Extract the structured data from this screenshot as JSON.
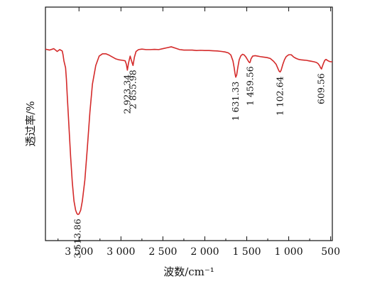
{
  "chart_data": {
    "type": "line",
    "xlabel": "波数/cm⁻¹",
    "ylabel": "透过率/%",
    "x_reversed": true,
    "xlim": [
      3900,
      480
    ],
    "ylim": [
      0,
      100
    ],
    "grid": false,
    "y_tick_labels_shown": false,
    "x_ticks": [
      {
        "value": 3500,
        "label": "3 500"
      },
      {
        "value": 3000,
        "label": "3 000"
      },
      {
        "value": 2500,
        "label": "2 500"
      },
      {
        "value": 2000,
        "label": "2 000"
      },
      {
        "value": 1500,
        "label": "1 500"
      },
      {
        "value": 1000,
        "label": "1 000"
      },
      {
        "value": 500,
        "label": "500"
      }
    ],
    "annotations": [
      {
        "text": "3 513.86",
        "x": 3513.86
      },
      {
        "text": "2 923.34",
        "x": 2923.34
      },
      {
        "text": "2 855.98",
        "x": 2855.98
      },
      {
        "text": "1 631.33",
        "x": 1631.33
      },
      {
        "text": "1 459.56",
        "x": 1459.56
      },
      {
        "text": "1 102.64",
        "x": 1102.64
      },
      {
        "text": "609.56",
        "x": 609.56
      }
    ],
    "series": [
      {
        "color": "#d42a2a",
        "x": [
          3900,
          3850,
          3800,
          3760,
          3730,
          3700,
          3690,
          3680,
          3660,
          3650,
          3640,
          3620,
          3600,
          3580,
          3560,
          3540,
          3525,
          3513.86,
          3500,
          3480,
          3460,
          3430,
          3400,
          3370,
          3340,
          3300,
          3260,
          3220,
          3180,
          3140,
          3100,
          3060,
          3020,
          2980,
          2950,
          2935,
          2923.34,
          2910,
          2890,
          2870,
          2855.98,
          2840,
          2820,
          2790,
          2750,
          2700,
          2650,
          2600,
          2550,
          2500,
          2450,
          2400,
          2350,
          2300,
          2250,
          2200,
          2150,
          2100,
          2050,
          2000,
          1950,
          1900,
          1850,
          1800,
          1760,
          1720,
          1690,
          1665,
          1650,
          1640,
          1631.33,
          1620,
          1605,
          1590,
          1570,
          1550,
          1530,
          1510,
          1490,
          1475,
          1465,
          1459.56,
          1450,
          1430,
          1400,
          1370,
          1340,
          1300,
          1260,
          1220,
          1180,
          1150,
          1130,
          1115,
          1102.64,
          1090,
          1070,
          1050,
          1030,
          1000,
          970,
          940,
          910,
          880,
          850,
          820,
          790,
          760,
          730,
          700,
          670,
          650,
          630,
          620,
          609.56,
          600,
          585,
          570,
          555,
          540,
          520,
          500,
          480
        ],
        "values": [
          82.0,
          81.6,
          82.2,
          81.0,
          81.8,
          81.2,
          79.5,
          77.0,
          74.0,
          69.0,
          62.0,
          49.0,
          36.0,
          25.0,
          17.0,
          13.0,
          11.6,
          11.2,
          11.4,
          13.0,
          17.0,
          26.0,
          40.0,
          55.0,
          67.0,
          75.0,
          79.0,
          80.0,
          80.0,
          79.4,
          78.6,
          77.8,
          77.4,
          77.2,
          77.0,
          75.5,
          73.0,
          76.0,
          79.0,
          76.5,
          75.0,
          78.5,
          81.0,
          81.8,
          82.0,
          81.8,
          81.8,
          81.9,
          81.8,
          82.2,
          82.6,
          83.0,
          82.4,
          81.8,
          81.6,
          81.6,
          81.6,
          81.4,
          81.5,
          81.4,
          81.4,
          81.3,
          81.2,
          81.0,
          80.8,
          80.4,
          79.5,
          77.0,
          74.0,
          71.5,
          70.0,
          71.0,
          74.5,
          77.5,
          79.2,
          79.8,
          79.5,
          78.6,
          77.4,
          76.5,
          76.2,
          76.5,
          77.8,
          79.0,
          79.2,
          79.0,
          78.8,
          78.6,
          78.4,
          78.0,
          76.8,
          75.5,
          73.8,
          72.6,
          72.2,
          73.0,
          75.5,
          77.5,
          78.8,
          79.6,
          79.6,
          78.6,
          78.0,
          77.6,
          77.4,
          77.3,
          77.2,
          77.0,
          76.8,
          76.6,
          76.3,
          75.8,
          74.8,
          74.0,
          73.5,
          74.5,
          76.0,
          77.2,
          77.6,
          77.2,
          76.8,
          76.6,
          76.6
        ]
      }
    ]
  }
}
